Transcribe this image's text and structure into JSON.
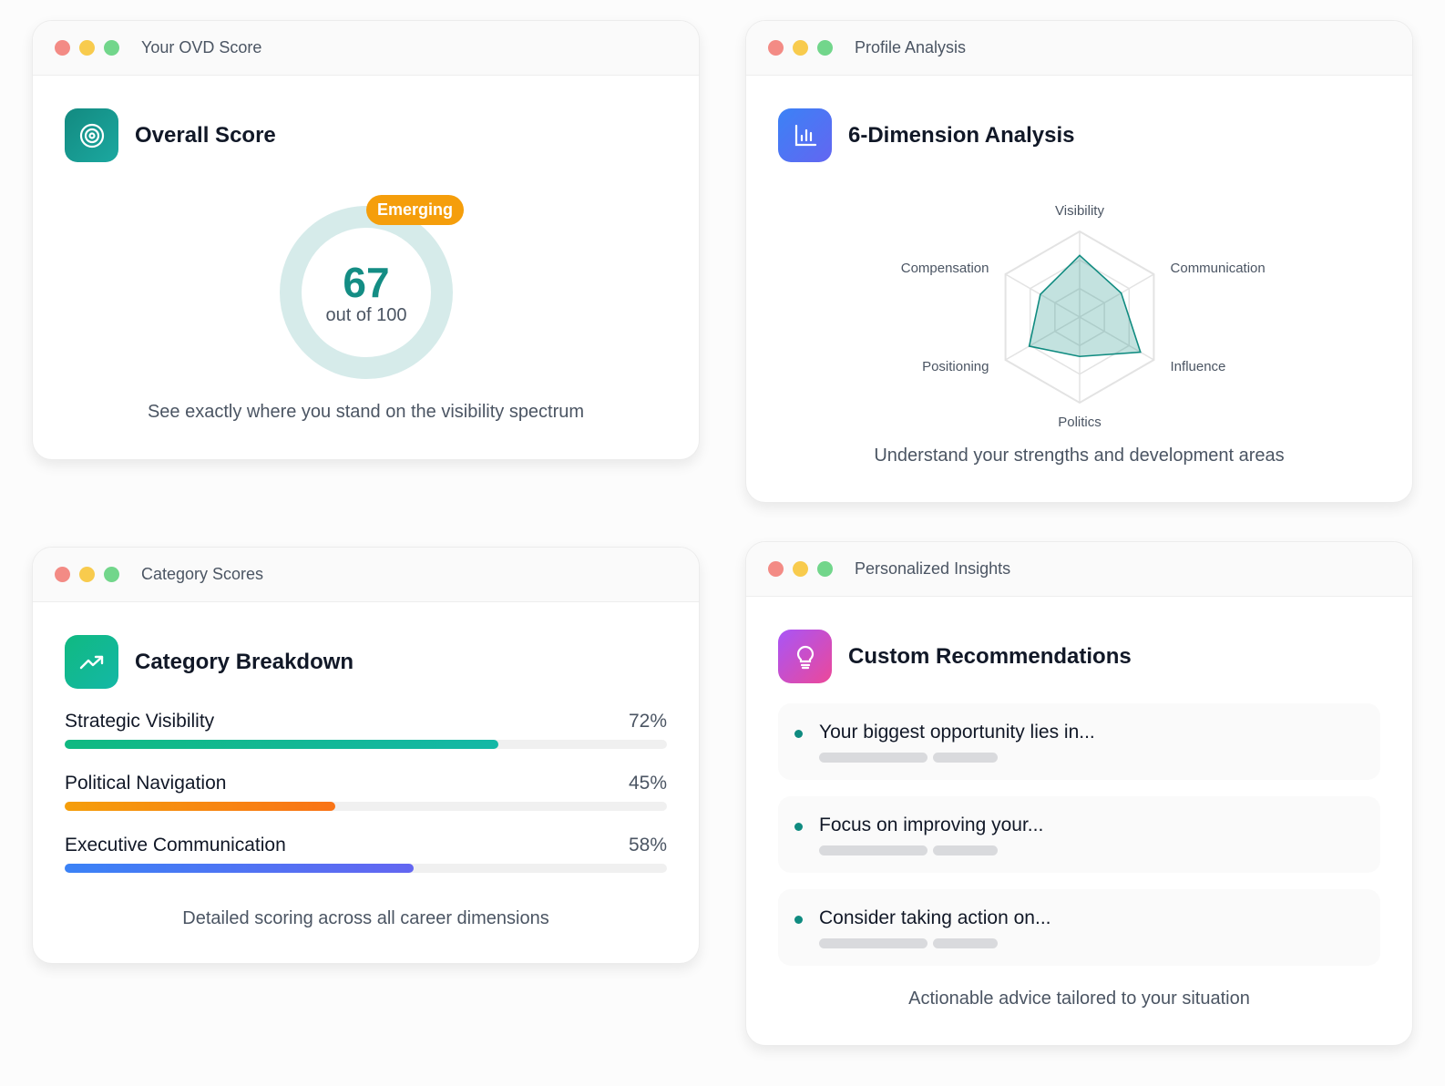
{
  "colors": {
    "red": "#f38b85",
    "yellow": "#f8cb4d",
    "green": "#72d68b",
    "teal": "#0f8b80",
    "amber": "#f59e0b"
  },
  "card1": {
    "window_title": "Your OVD Score",
    "heading": "Overall Score",
    "badge": "Emerging",
    "score": "67",
    "score_sub": "out of 100",
    "score_value": 67,
    "caption": "See exactly where you stand on the visibility spectrum"
  },
  "card2": {
    "window_title": "Profile Analysis",
    "heading": "6-Dimension Analysis",
    "caption": "Understand your strengths and development areas"
  },
  "chart_data": {
    "type": "radar",
    "axes": [
      "Visibility",
      "Communication",
      "Influence",
      "Politics",
      "Positioning",
      "Compensation"
    ],
    "values": [
      72,
      56,
      82,
      46,
      68,
      53
    ],
    "range": [
      0,
      100
    ],
    "grid_levels": 3
  },
  "card3": {
    "window_title": "Category Scores",
    "heading": "Category Breakdown",
    "categories": [
      {
        "label": "Strategic Visibility",
        "percent": "72%",
        "value": 72
      },
      {
        "label": "Political Navigation",
        "percent": "45%",
        "value": 45
      },
      {
        "label": "Executive Communication",
        "percent": "58%",
        "value": 58
      }
    ],
    "caption": "Detailed scoring across all career dimensions"
  },
  "card4": {
    "window_title": "Personalized Insights",
    "heading": "Custom Recommendations",
    "items": [
      "Your biggest opportunity lies in...",
      "Focus on improving your...",
      "Consider taking action on..."
    ],
    "caption": "Actionable advice tailored to your situation"
  }
}
